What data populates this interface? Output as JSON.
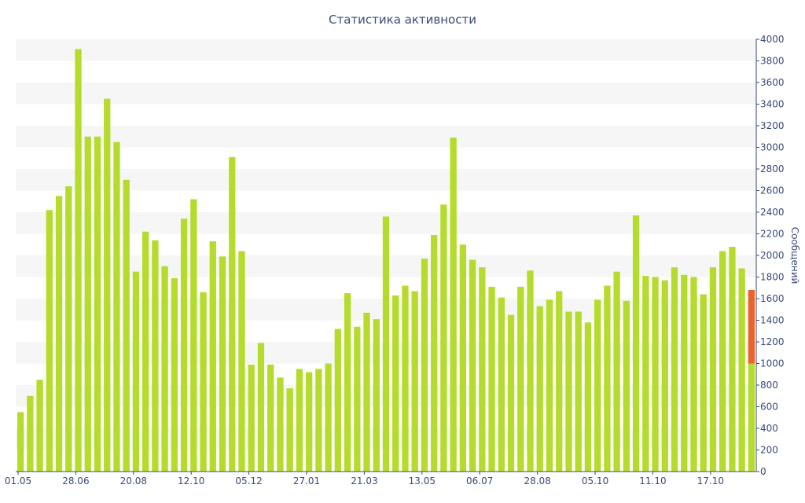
{
  "chart_data": {
    "type": "bar",
    "title": "Статистика активности",
    "ylabel": "Сообщений",
    "xlabel": "",
    "ylim": [
      0,
      4000
    ],
    "y_axis_side": "right",
    "y_ticks": [
      0,
      200,
      400,
      600,
      800,
      1000,
      1200,
      1400,
      1600,
      1800,
      2000,
      2200,
      2400,
      2600,
      2800,
      3000,
      3200,
      3400,
      3600,
      3800,
      4000
    ],
    "x_tick_labels": [
      {
        "label": "01.05",
        "index": 0
      },
      {
        "label": "28.06",
        "index": 6
      },
      {
        "label": "20.08",
        "index": 12
      },
      {
        "label": "12.10",
        "index": 18
      },
      {
        "label": "05.12",
        "index": 24
      },
      {
        "label": "27.01",
        "index": 30
      },
      {
        "label": "21.03",
        "index": 36
      },
      {
        "label": "13.05",
        "index": 42
      },
      {
        "label": "06.07",
        "index": 48
      },
      {
        "label": "28.08",
        "index": 54
      },
      {
        "label": "05.10",
        "index": 60
      },
      {
        "label": "11.10",
        "index": 66
      },
      {
        "label": "17.10",
        "index": 72
      }
    ],
    "grid": "horizontal bands",
    "series": [
      {
        "color": "#b5dc2c",
        "values": [
          550,
          700,
          850,
          2420,
          2550,
          2640,
          3910,
          3100,
          3100,
          3450,
          3050,
          2700,
          1850,
          2220,
          2140,
          1900,
          1790,
          2340,
          2520,
          1660,
          2130,
          1990,
          2910,
          2040,
          990,
          1190,
          990,
          870,
          770,
          950,
          920,
          950,
          1000,
          1320,
          1650,
          1340,
          1470,
          1410,
          2360,
          1630,
          1720,
          1670,
          1970,
          2190,
          2470,
          3090,
          2100,
          1960,
          1890,
          1710,
          1610,
          1450,
          1710,
          1860,
          1530,
          1590,
          1670,
          1480,
          1480,
          1380,
          1590,
          1720,
          1850,
          1580,
          2370,
          1810,
          1800,
          1770,
          1890,
          1820,
          1800,
          1640,
          1890,
          2040,
          2080,
          1880,
          1000
        ]
      },
      {
        "color": "#e8642a",
        "values": [
          0,
          0,
          0,
          0,
          0,
          0,
          0,
          0,
          0,
          0,
          0,
          0,
          0,
          0,
          0,
          0,
          0,
          0,
          0,
          0,
          0,
          0,
          0,
          0,
          0,
          0,
          0,
          0,
          0,
          0,
          0,
          0,
          0,
          0,
          0,
          0,
          0,
          0,
          0,
          0,
          0,
          0,
          0,
          0,
          0,
          0,
          0,
          0,
          0,
          0,
          0,
          0,
          0,
          0,
          0,
          0,
          0,
          0,
          0,
          0,
          0,
          0,
          0,
          0,
          0,
          0,
          0,
          0,
          0,
          0,
          0,
          0,
          0,
          0,
          0,
          0,
          680
        ]
      }
    ],
    "stacked": true,
    "colors": {
      "band": "#f6f6f6",
      "axis": "#3a4a7a",
      "text": "#3a4a7a"
    }
  }
}
